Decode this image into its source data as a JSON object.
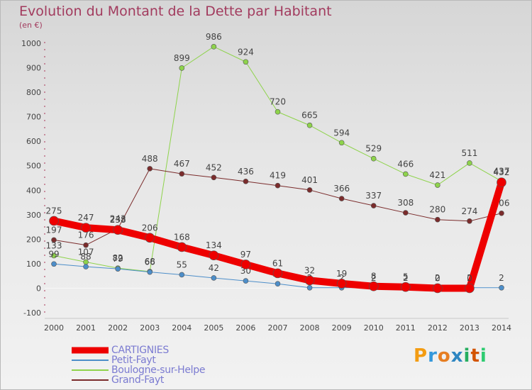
{
  "title": "Evolution du Montant de la Dette par Habitant",
  "subtitle": "(en €)",
  "brand": {
    "text": "Proxiti",
    "letter_colors": [
      "#f39c12",
      "#3498db",
      "#e67e22",
      "#2e86c1",
      "#27ae60",
      "#d35400",
      "#2ecc71"
    ]
  },
  "chart_data": {
    "type": "line",
    "title": "Evolution du Montant de la Dette par Habitant",
    "ylabel": "(en €)",
    "x": [
      "2000",
      "2001",
      "2002",
      "2003",
      "2004",
      "2005",
      "2006",
      "2007",
      "2008",
      "2009",
      "2010",
      "2011",
      "2012",
      "2013",
      "2014"
    ],
    "ylim": [
      -100,
      1000
    ],
    "yticks": [
      -100,
      0,
      100,
      200,
      300,
      400,
      500,
      600,
      700,
      800,
      900,
      1000
    ],
    "grid": false,
    "legend": "bottom-left",
    "series": [
      {
        "name": "Boulogne-sur-Helpe",
        "color": "#8ed34b",
        "width": 1,
        "marker": 3.5,
        "values": [
          133,
          107,
          82,
          68,
          899,
          986,
          924,
          720,
          665,
          594,
          529,
          466,
          421,
          511,
          437
        ]
      },
      {
        "name": "Grand-Fayt",
        "color": "#7b2c2c",
        "width": 1,
        "marker": 3.5,
        "values": [
          197,
          176,
          243,
          488,
          467,
          452,
          436,
          419,
          401,
          366,
          337,
          308,
          280,
          274,
          306
        ]
      },
      {
        "name": "Petit-Fayt",
        "color": "#4d8ec9",
        "width": 1,
        "marker": 3.5,
        "values": [
          99,
          88,
          79,
          66,
          55,
          42,
          30,
          18,
          2,
          2,
          2,
          2,
          2,
          2,
          2
        ]
      },
      {
        "name": "CARTIGNIES",
        "color": "#ee0000",
        "width": 10,
        "marker": 6.5,
        "values": [
          275,
          247,
          238,
          206,
          168,
          134,
          97,
          61,
          32,
          19,
          8,
          5,
          0,
          0,
          432
        ]
      }
    ]
  },
  "legend_order": [
    "CARTIGNIES",
    "Petit-Fayt",
    "Boulogne-sur-Helpe",
    "Grand-Fayt"
  ]
}
